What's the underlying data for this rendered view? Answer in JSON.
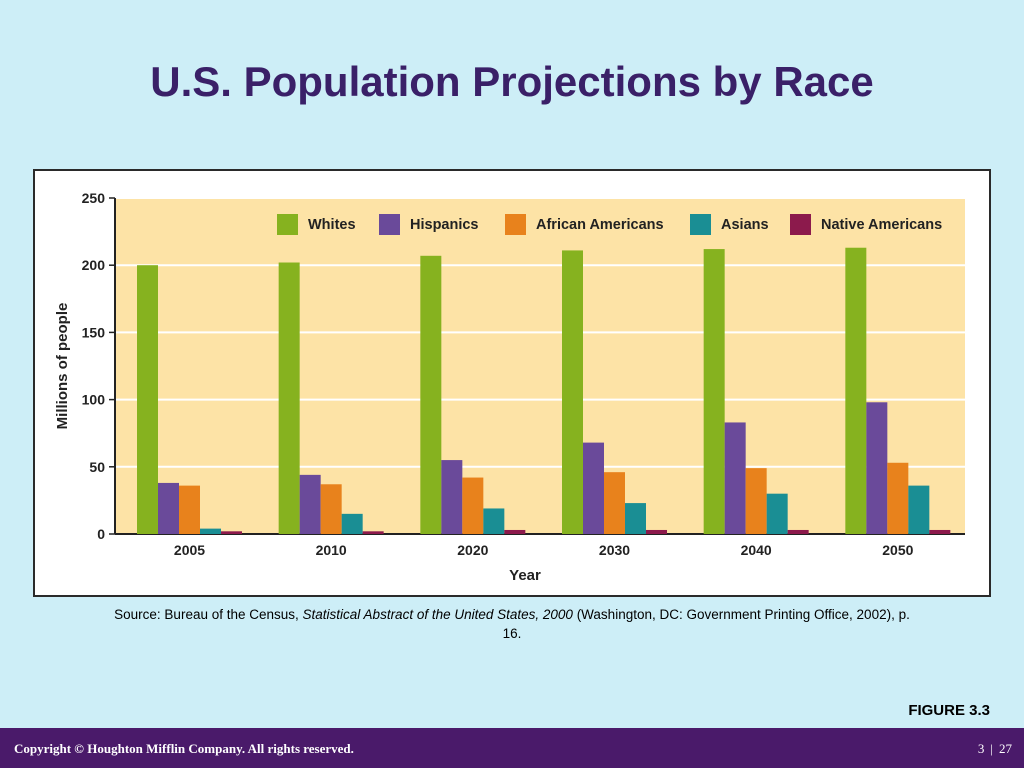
{
  "slide": {
    "title": "U.S. Population Projections by Race",
    "source": {
      "prefix": "Source: Bureau of the Census, ",
      "publication": "Statistical Abstract of the United States, 2000",
      "suffix": " (Washington, DC: Government Printing Office, 2002), p. 16."
    },
    "figure_label": "FIGURE 3.3"
  },
  "footer": {
    "copyright": "Copyright © Houghton Mifflin Company. All rights reserved.",
    "page_current": "3",
    "page_separator": "|",
    "page_total": "27"
  },
  "colors": {
    "background": "#cdeef7",
    "plot_background": "#fde3a6",
    "title": "#3a2068",
    "footer": "#4a1a6a"
  },
  "chart_data": {
    "type": "bar",
    "xlabel": "Year",
    "ylabel": "Millions of people",
    "ylim": [
      0,
      250
    ],
    "yticks": [
      0,
      50,
      100,
      150,
      200,
      250
    ],
    "grid": true,
    "legend_position": "top",
    "categories": [
      "2005",
      "2010",
      "2020",
      "2030",
      "2040",
      "2050"
    ],
    "series": [
      {
        "name": "Whites",
        "color": "#86b21f",
        "values": [
          200,
          202,
          207,
          211,
          212,
          213
        ]
      },
      {
        "name": "Hispanics",
        "color": "#6a4a9a",
        "values": [
          38,
          44,
          55,
          68,
          83,
          98
        ]
      },
      {
        "name": "African Americans",
        "color": "#e8821c",
        "values": [
          36,
          37,
          42,
          46,
          49,
          53
        ]
      },
      {
        "name": "Asians",
        "color": "#1a8e94",
        "values": [
          4,
          15,
          19,
          23,
          30,
          36
        ]
      },
      {
        "name": "Native Americans",
        "color": "#8c1a4c",
        "values": [
          2,
          2,
          3,
          3,
          3,
          3
        ]
      }
    ]
  }
}
